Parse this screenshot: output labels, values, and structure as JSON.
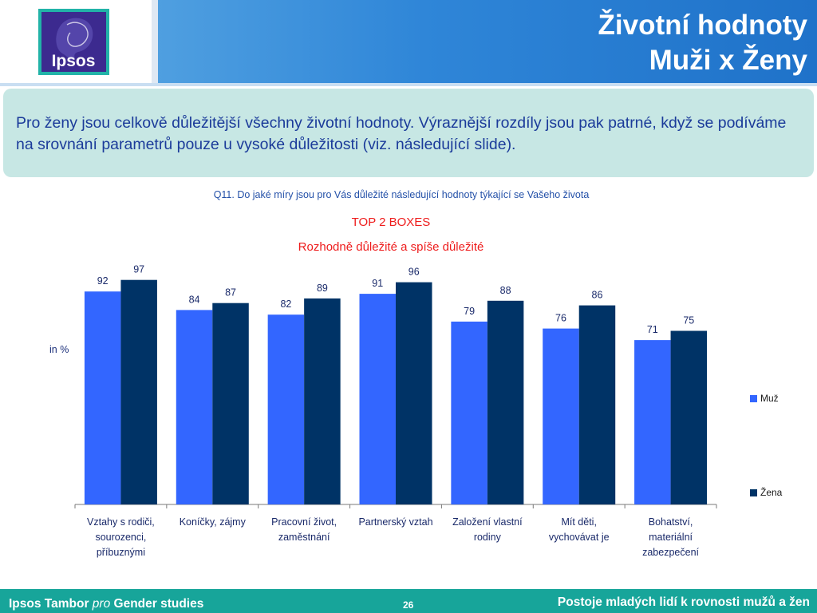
{
  "header": {
    "logo_text": "Ipsos",
    "title_line1": "Životní hodnoty",
    "title_line2": "Muži x Ženy"
  },
  "callout": {
    "text": "Pro ženy jsou celkově důležitější všechny životní hodnoty. Výraznější rozdíly jsou pak patrné, když se podíváme na srovnání parametrů pouze u vysoké důležitosti (viz. následující slide)."
  },
  "question": "Q11. Do jaké míry jsou pro Vás důležité následující hodnoty týkající se Vašeho života",
  "chart_data": {
    "type": "bar",
    "title": "TOP 2 BOXES",
    "subtitle": "Rozhodně důležité a spíše důležité",
    "ylabel": "in %",
    "categories": [
      "Vztahy s rodiči, sourozenci, příbuznými",
      "Koníčky, zájmy",
      "Pracovní život, zaměstnání",
      "Partnerský vztah",
      "Založení vlastní rodiny",
      "Mít děti, vychovávat je",
      "Bohatství, materiální zabezpečení"
    ],
    "category_lines": [
      [
        "Vztahy s rodiči,",
        "sourozenci,",
        "příbuznými"
      ],
      [
        "Koníčky, zájmy"
      ],
      [
        "Pracovní život,",
        "zaměstnání"
      ],
      [
        "Partnerský vztah"
      ],
      [
        "Založení vlastní",
        "rodiny"
      ],
      [
        "Mít děti,",
        "vychovávat je"
      ],
      [
        "Bohatství,",
        "materiální",
        "zabezpečení"
      ]
    ],
    "series": [
      {
        "name": "Muž",
        "color": "#3366ff",
        "values": [
          92,
          84,
          82,
          91,
          79,
          76,
          71
        ]
      },
      {
        "name": "Žena",
        "color": "#003366",
        "values": [
          97,
          87,
          89,
          96,
          88,
          86,
          75
        ]
      }
    ],
    "ylim": [
      0,
      100
    ],
    "grid": false,
    "legend_position": "right"
  },
  "footer": {
    "brand": "Ipsos Tambor",
    "pro": "pro",
    "studies": "Gender studies",
    "page": "26",
    "right_text": "Postoje mladých lidí k rovnosti mužů a žen"
  },
  "colors": {
    "title_band": "#2f86d8",
    "callout_bg": "#c7e7e4",
    "footer_bg": "#17a59a",
    "logo_purple": "#3c2a8f",
    "logo_teal": "#22b3a8"
  }
}
